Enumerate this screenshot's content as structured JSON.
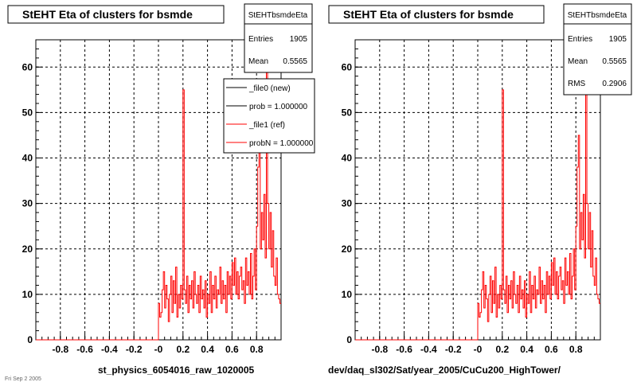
{
  "page": {
    "footer_fragment": "Fri Sep  2  2005"
  },
  "panels": [
    {
      "title": "StEHT Eta of clusters for bsmde",
      "stats": {
        "name": "StEHTbsmdeEta",
        "rows": [
          {
            "label": "Entries",
            "value": "1905"
          },
          {
            "label": "Mean",
            "value": "0.5565"
          }
        ]
      },
      "legend": [
        {
          "label": "_file0 (new)",
          "color": "#000000"
        },
        {
          "label": "prob = 1.000000",
          "color": "#000000"
        },
        {
          "label": "_file1 (ref)",
          "color": "#ff0000"
        },
        {
          "label": "probN = 1.000000",
          "color": "#ff0000"
        }
      ],
      "xlabel": "st_physics_6054016_raw_1020005"
    },
    {
      "title": "StEHT Eta of clusters for bsmde",
      "stats": {
        "name": "StEHTbsmdeEta",
        "rows": [
          {
            "label": "Entries",
            "value": "1905"
          },
          {
            "label": "Mean",
            "value": "0.5565"
          },
          {
            "label": "RMS",
            "value": "0.2906"
          }
        ]
      },
      "legend": [],
      "xlabel": "dev/daq_sl302/Sat/year_2005/CuCu200_HighTower/"
    }
  ],
  "chart_data": {
    "type": "line",
    "title": "StEHT Eta of clusters for bsmde",
    "xlim": [
      -1.0,
      1.0
    ],
    "ylim": [
      0,
      66
    ],
    "grid": true,
    "xticks": [
      -0.8,
      -0.6,
      -0.4,
      -0.2,
      0,
      0.2,
      0.4,
      0.6,
      0.8
    ],
    "xtick_labels": [
      "-0.8",
      "-0.6",
      "-0.4",
      "-0.2",
      "-0",
      "0.2",
      "0.4",
      "0.6",
      "0.8"
    ],
    "yticks": [
      0,
      10,
      20,
      30,
      40,
      50,
      60
    ],
    "ytick_labels": [
      "0",
      "10",
      "20",
      "30",
      "40",
      "50",
      "60"
    ],
    "bin_edges_range": [
      -1.0,
      1.0
    ],
    "series": [
      {
        "name": "_file1 (ref)",
        "color": "#ff0000",
        "values": [
          0,
          0,
          0,
          0,
          0,
          0,
          0,
          0,
          0,
          0,
          0,
          0,
          0,
          0,
          0,
          0,
          0,
          0,
          0,
          0,
          0,
          0,
          0,
          0,
          0,
          0,
          0,
          0,
          0,
          0,
          0,
          0,
          0,
          0,
          0,
          0,
          0,
          0,
          0,
          0,
          0,
          0,
          0,
          0,
          0,
          0,
          0,
          0,
          0,
          0,
          0,
          0,
          0,
          0,
          0,
          0,
          0,
          0,
          0,
          0,
          0,
          0,
          0,
          0,
          0,
          0,
          0,
          0,
          0,
          0,
          0,
          0,
          0,
          0,
          0,
          0,
          0,
          0,
          0,
          0,
          0,
          0,
          0,
          0,
          0,
          0,
          0,
          0,
          0,
          0,
          0,
          0,
          0,
          0,
          0,
          0,
          0,
          0,
          0,
          0,
          8,
          5,
          6,
          11,
          15,
          7,
          12,
          9,
          4,
          10,
          14,
          6,
          13,
          8,
          16,
          5,
          10,
          7,
          12,
          9,
          55,
          11,
          8,
          14,
          6,
          12,
          9,
          13,
          7,
          15,
          10,
          8,
          12,
          6,
          14,
          9,
          11,
          7,
          13,
          5,
          10,
          8,
          15,
          6,
          12,
          9,
          14,
          7,
          11,
          10,
          16,
          8,
          13,
          9,
          12,
          6,
          15,
          10,
          14,
          9,
          17,
          12,
          18,
          10,
          15,
          9,
          14,
          16,
          11,
          13,
          8,
          18,
          12,
          15,
          10,
          19,
          9,
          14,
          20,
          11,
          25,
          38,
          45,
          20,
          28,
          22,
          32,
          18,
          63,
          30,
          20,
          28,
          16,
          24,
          14,
          12,
          18,
          10,
          9,
          8
        ]
      }
    ]
  }
}
